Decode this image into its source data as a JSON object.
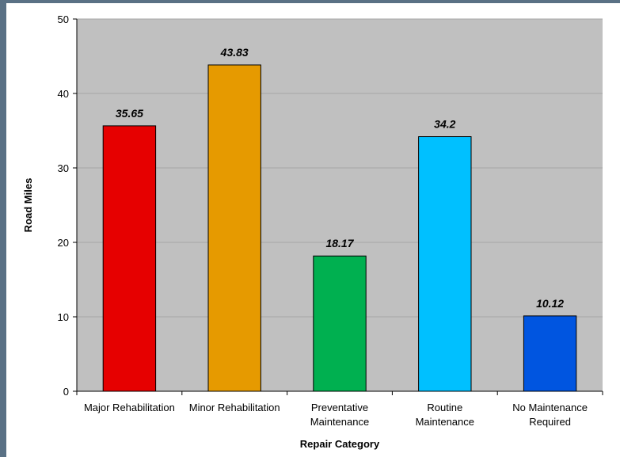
{
  "chart_data": {
    "type": "bar",
    "categories": [
      [
        "Major Rehabilitation"
      ],
      [
        "Minor Rehabilitation"
      ],
      [
        "Preventative",
        "Maintenance"
      ],
      [
        "Routine",
        "Maintenance"
      ],
      [
        "No Maintenance",
        "Required"
      ]
    ],
    "values": [
      35.65,
      43.83,
      18.17,
      34.2,
      10.12
    ],
    "value_labels": [
      "35.65",
      "43.83",
      "18.17",
      "34.2",
      "10.12"
    ],
    "colors": [
      "#e60000",
      "#e69a00",
      "#00b050",
      "#00c0ff",
      "#0055e0"
    ],
    "xlabel": "Repair Category",
    "ylabel": "Road Miles",
    "ylim": [
      0,
      50
    ],
    "yticks": [
      0,
      10,
      20,
      30,
      40,
      50
    ],
    "grid": true,
    "plot_background": "#c0c0c0"
  }
}
